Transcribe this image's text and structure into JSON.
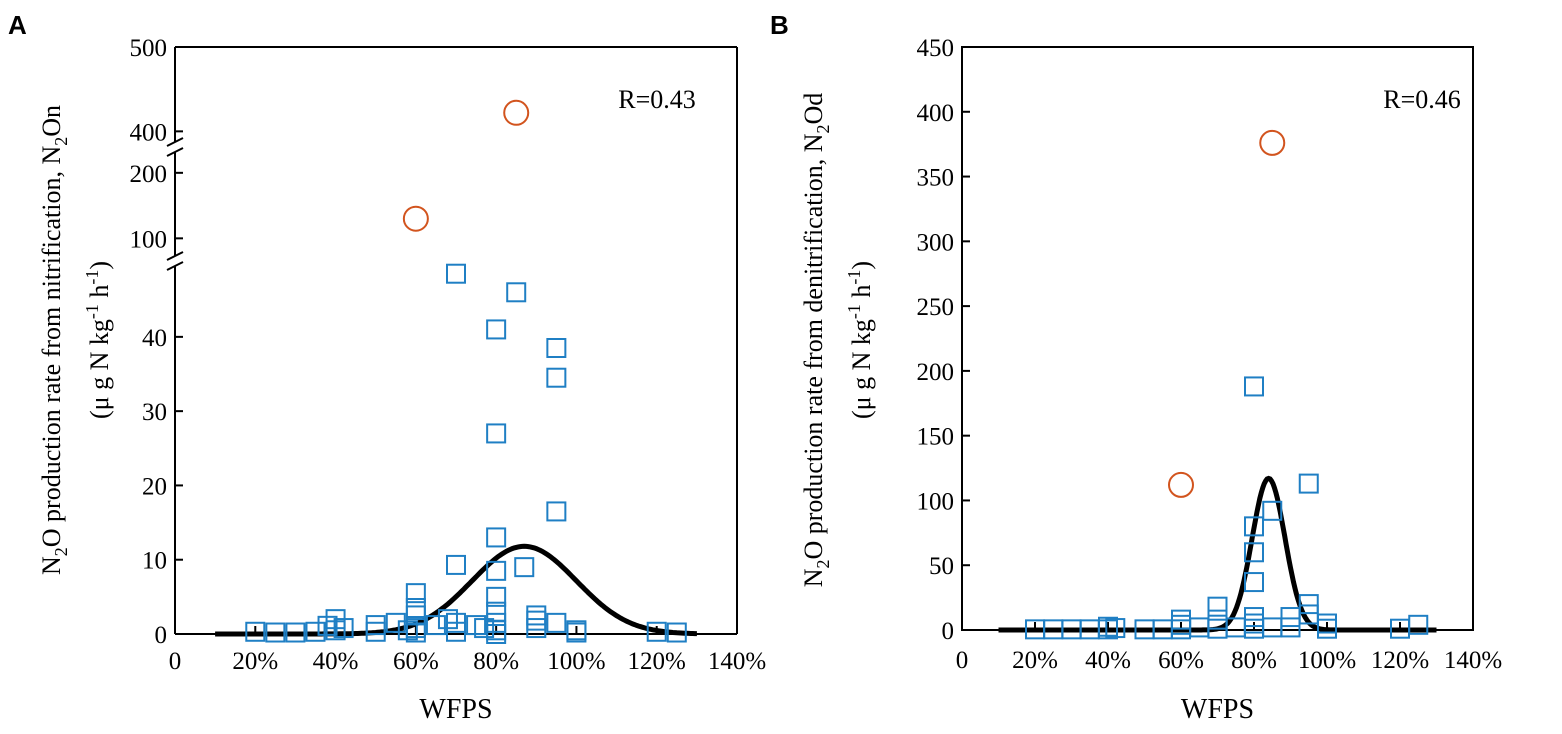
{
  "colors": {
    "square": "#1f7fc4",
    "circle": "#d2541e",
    "fit": "#000000",
    "axis": "#000000"
  },
  "chart_data": [
    {
      "panel": "A",
      "type": "scatter",
      "ylabel_line1": "N2O production rate from nitrification, N2On",
      "ylabel_line1_parts": [
        "N",
        "2",
        "O production rate from nitrification, N",
        "2",
        "On"
      ],
      "ylabel_line2_parts": [
        "(μ g N kg",
        "-1",
        " h",
        "-1",
        ")"
      ],
      "ylabel_line2": "(μ g N kg-1 h-1)",
      "xlabel": "WFPS",
      "annotation": "R=0.43",
      "xlim": [
        0,
        1.4
      ],
      "x_ticks": [
        0,
        0.2,
        0.4,
        0.6,
        0.8,
        1.0,
        1.2,
        1.4
      ],
      "x_tick_labels": [
        "0",
        "20%",
        "40%",
        "60%",
        "80%",
        "100%",
        "120%",
        "140%"
      ],
      "y_axis_broken": true,
      "y_segments": [
        {
          "range": [
            0,
            49
          ],
          "ticks": [
            0,
            10,
            20,
            30,
            40
          ]
        },
        {
          "range": [
            70,
            215
          ],
          "ticks": [
            100,
            200
          ]
        },
        {
          "range": [
            385,
            500
          ],
          "ticks": [
            400,
            500
          ]
        }
      ],
      "y_tick_labels": [
        "0",
        "10",
        "20",
        "30",
        "40",
        "100",
        "200",
        "400",
        "500"
      ],
      "squares": [
        [
          0.2,
          0.3
        ],
        [
          0.25,
          0.2
        ],
        [
          0.3,
          0.2
        ],
        [
          0.35,
          0.3
        ],
        [
          0.38,
          1.1
        ],
        [
          0.4,
          2.0
        ],
        [
          0.4,
          0.5
        ],
        [
          0.42,
          0.8
        ],
        [
          0.5,
          1.2
        ],
        [
          0.5,
          0.3
        ],
        [
          0.55,
          1.5
        ],
        [
          0.58,
          0.5
        ],
        [
          0.6,
          0.8
        ],
        [
          0.6,
          2.5
        ],
        [
          0.6,
          3.5
        ],
        [
          0.6,
          5.5
        ],
        [
          0.6,
          0.2
        ],
        [
          0.65,
          1.2
        ],
        [
          0.68,
          2.0
        ],
        [
          0.7,
          0.3
        ],
        [
          0.7,
          1.5
        ],
        [
          0.7,
          9.3
        ],
        [
          0.7,
          48.5
        ],
        [
          0.75,
          1.2
        ],
        [
          0.77,
          0.8
        ],
        [
          0.8,
          0.5
        ],
        [
          0.8,
          1.5
        ],
        [
          0.8,
          3.0
        ],
        [
          0.8,
          5.0
        ],
        [
          0.8,
          8.5
        ],
        [
          0.8,
          13.0
        ],
        [
          0.8,
          27.0
        ],
        [
          0.8,
          41.0
        ],
        [
          0.8,
          0.0
        ],
        [
          0.85,
          46.0
        ],
        [
          0.87,
          9.0
        ],
        [
          0.9,
          0.8
        ],
        [
          0.9,
          2.5
        ],
        [
          0.9,
          1.8
        ],
        [
          0.95,
          1.5
        ],
        [
          0.95,
          16.5
        ],
        [
          0.95,
          34.5
        ],
        [
          0.95,
          38.5
        ],
        [
          1.0,
          0.5
        ],
        [
          1.0,
          0.2
        ],
        [
          1.2,
          0.3
        ],
        [
          1.25,
          0.2
        ]
      ],
      "circles": [
        [
          0.6,
          130
        ],
        [
          0.85,
          422
        ]
      ],
      "fit": {
        "model": "gaussian",
        "amplitude": 11.8,
        "center": 0.87,
        "sigma": 0.13,
        "x_range": [
          0.1,
          1.3
        ]
      }
    },
    {
      "panel": "B",
      "type": "scatter",
      "ylabel_line1": "N2O production rate from denitrification, N2Od",
      "ylabel_line1_parts": [
        "N",
        "2",
        "O production rate from denitrification, N",
        "2",
        "Od"
      ],
      "ylabel_line2_parts": [
        "(μ g N kg",
        "-1",
        " h",
        "-1",
        ")"
      ],
      "ylabel_line2": "(μ g N kg-1 h-1)",
      "xlabel": "WFPS",
      "annotation": "R=0.46",
      "xlim": [
        0,
        1.4
      ],
      "x_ticks": [
        0,
        0.2,
        0.4,
        0.6,
        0.8,
        1.0,
        1.2,
        1.4
      ],
      "x_tick_labels": [
        "0",
        "20%",
        "40%",
        "60%",
        "80%",
        "100%",
        "120%",
        "140%"
      ],
      "ylim": [
        0,
        450
      ],
      "y_ticks": [
        0,
        50,
        100,
        150,
        200,
        250,
        300,
        350,
        400,
        450
      ],
      "y_tick_labels": [
        "0",
        "50",
        "100",
        "150",
        "200",
        "250",
        "300",
        "350",
        "400",
        "450"
      ],
      "squares": [
        [
          0.2,
          0.5
        ],
        [
          0.25,
          0.5
        ],
        [
          0.3,
          0.5
        ],
        [
          0.35,
          0.5
        ],
        [
          0.4,
          0.5
        ],
        [
          0.4,
          2.5
        ],
        [
          0.42,
          1.5
        ],
        [
          0.5,
          0.5
        ],
        [
          0.55,
          0.5
        ],
        [
          0.6,
          0.5
        ],
        [
          0.6,
          4.0
        ],
        [
          0.6,
          8.0
        ],
        [
          0.65,
          2.0
        ],
        [
          0.7,
          1.0
        ],
        [
          0.7,
          8.0
        ],
        [
          0.7,
          18.0
        ],
        [
          0.75,
          2.0
        ],
        [
          0.8,
          1.0
        ],
        [
          0.8,
          5.0
        ],
        [
          0.8,
          10.0
        ],
        [
          0.8,
          37.0
        ],
        [
          0.8,
          60.0
        ],
        [
          0.8,
          80.0
        ],
        [
          0.8,
          188.0
        ],
        [
          0.85,
          92.0
        ],
        [
          0.85,
          2.0
        ],
        [
          0.9,
          2.0
        ],
        [
          0.9,
          10.0
        ],
        [
          0.95,
          12.0
        ],
        [
          0.95,
          20.0
        ],
        [
          0.95,
          113.0
        ],
        [
          1.0,
          5.0
        ],
        [
          1.0,
          1.0
        ],
        [
          1.2,
          1.0
        ],
        [
          1.25,
          4.0
        ]
      ],
      "circles": [
        [
          0.6,
          112
        ],
        [
          0.85,
          376
        ]
      ],
      "fit": {
        "model": "gaussian",
        "amplitude": 117,
        "center": 0.84,
        "sigma": 0.045,
        "x_range": [
          0.1,
          1.3
        ]
      }
    }
  ]
}
